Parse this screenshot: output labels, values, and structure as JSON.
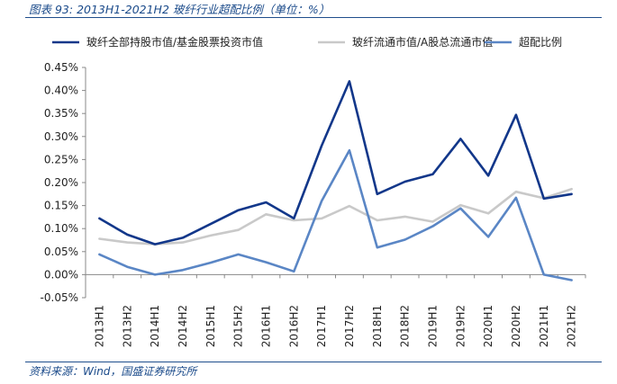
{
  "figure": {
    "title": "图表 93:  2013H1-2021H2 玻纤行业超配比例（单位：%）",
    "source": "资料来源：Wind，国盛证券研究所"
  },
  "chart_data": {
    "type": "line",
    "categories": [
      "2013H1",
      "2013H2",
      "2014H1",
      "2014H2",
      "2015H1",
      "2015H2",
      "2016H1",
      "2016H2",
      "2017H1",
      "2017H2",
      "2018H1",
      "2018H2",
      "2019H1",
      "2019H2",
      "2020H1",
      "2020H2",
      "2021H1",
      "2021H2"
    ],
    "ylim": [
      -0.05,
      0.45
    ],
    "yticks": [
      -0.05,
      0.0,
      0.05,
      0.1,
      0.15,
      0.2,
      0.25,
      0.3,
      0.35,
      0.4,
      0.45
    ],
    "y_unit": "%",
    "legend_position": "top",
    "grid": false,
    "series": [
      {
        "name": "玻纤全部持股市值/基金股票投资市值",
        "color": "#12378a",
        "values": [
          0.122,
          0.087,
          0.066,
          0.08,
          0.11,
          0.14,
          0.157,
          0.122,
          0.28,
          0.42,
          0.175,
          0.202,
          0.218,
          0.295,
          0.215,
          0.347,
          0.165,
          0.175
        ]
      },
      {
        "name": "玻纤流通市值/A股总流通市值",
        "color": "#c9c9c9",
        "values": [
          0.078,
          0.07,
          0.066,
          0.07,
          0.085,
          0.097,
          0.131,
          0.118,
          0.122,
          0.149,
          0.118,
          0.126,
          0.115,
          0.151,
          0.133,
          0.18,
          0.166,
          0.186
        ]
      },
      {
        "name": "超配比例",
        "color": "#5a86c5",
        "values": [
          0.044,
          0.017,
          0.0,
          0.01,
          0.026,
          0.044,
          0.027,
          0.007,
          0.16,
          0.27,
          0.059,
          0.076,
          0.105,
          0.144,
          0.082,
          0.167,
          0.0,
          -0.012
        ]
      }
    ]
  }
}
